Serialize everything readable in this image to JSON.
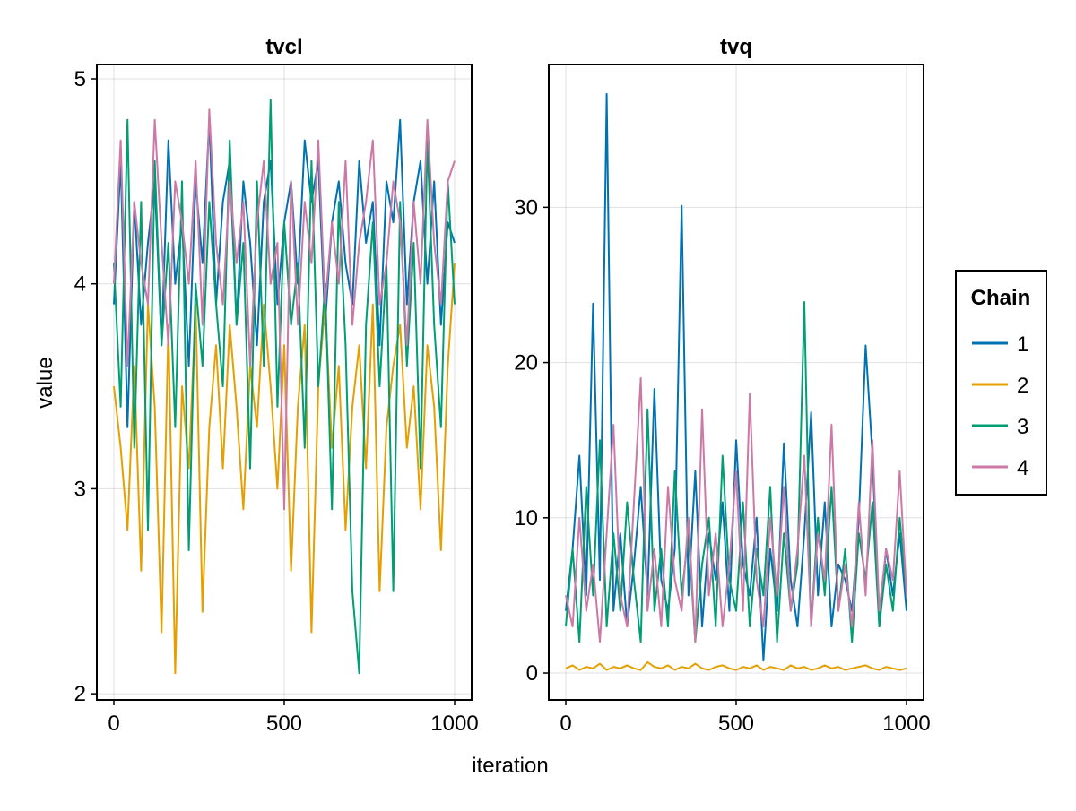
{
  "xlabel": "iteration",
  "ylabel": "value",
  "legend": {
    "title": "Chain",
    "placement": "right",
    "entries": [
      "1",
      "2",
      "3",
      "4"
    ]
  },
  "colors": {
    "1": "#0072B2",
    "2": "#E69F00",
    "3": "#009E73",
    "4": "#CC79A7"
  },
  "chart_data": [
    {
      "type": "line",
      "title": "tvcl",
      "xlim": [
        -50,
        1050
      ],
      "ylim": [
        1.97,
        5.07
      ],
      "xticks": [
        0,
        500,
        1000
      ],
      "yticks": [
        2,
        3,
        4,
        5
      ],
      "grid": true,
      "x_step": 20,
      "series": [
        {
          "name": "1",
          "values": [
            3.9,
            4.6,
            3.3,
            4.4,
            3.8,
            4.2,
            4.5,
            3.7,
            4.7,
            4.0,
            4.3,
            3.6,
            4.5,
            4.1,
            4.8,
            3.9,
            4.4,
            4.6,
            3.8,
            4.5,
            4.2,
            3.7,
            4.4,
            4.6,
            3.9,
            4.3,
            4.5,
            4.0,
            4.7,
            4.4,
            4.6,
            3.8,
            4.3,
            4.5,
            4.1,
            3.9,
            4.6,
            4.2,
            4.4,
            3.7,
            4.5,
            4.3,
            4.8,
            3.9,
            4.4,
            4.6,
            4.0,
            4.5,
            3.8,
            4.3,
            4.2
          ]
        },
        {
          "name": "2",
          "values": [
            3.5,
            3.2,
            2.8,
            3.6,
            2.6,
            3.9,
            3.4,
            2.3,
            3.8,
            2.1,
            3.5,
            3.1,
            3.9,
            2.4,
            3.3,
            3.7,
            3.1,
            3.8,
            3.4,
            2.9,
            3.6,
            3.3,
            3.9,
            3.5,
            3.0,
            3.7,
            2.6,
            3.4,
            3.8,
            2.3,
            3.5,
            3.9,
            3.2,
            3.6,
            2.8,
            3.4,
            3.7,
            3.1,
            3.9,
            2.5,
            3.3,
            3.6,
            3.8,
            3.2,
            3.5,
            2.9,
            3.7,
            3.4,
            2.7,
            3.6,
            4.1
          ]
        },
        {
          "name": "3",
          "values": [
            4.1,
            3.4,
            4.8,
            3.2,
            4.4,
            2.8,
            4.6,
            3.7,
            4.2,
            3.3,
            4.5,
            2.7,
            4.0,
            3.6,
            4.4,
            3.9,
            3.5,
            4.7,
            3.8,
            4.2,
            3.1,
            4.5,
            3.6,
            4.9,
            3.4,
            4.3,
            3.8,
            4.1,
            3.2,
            4.6,
            3.5,
            4.0,
            2.9,
            4.4,
            3.7,
            2.5,
            2.1,
            3.8,
            4.3,
            3.5,
            4.1,
            2.5,
            4.4,
            3.6,
            4.2,
            3.1,
            4.7,
            3.8,
            3.3,
            4.5,
            3.9
          ]
        },
        {
          "name": "4",
          "values": [
            4.0,
            4.7,
            3.6,
            4.4,
            4.1,
            3.9,
            4.8,
            4.2,
            3.7,
            4.5,
            4.3,
            4.0,
            4.6,
            3.8,
            4.85,
            4.2,
            3.9,
            4.5,
            4.1,
            4.4,
            3.6,
            4.3,
            4.6,
            4.0,
            4.2,
            2.9,
            4.5,
            3.8,
            4.4,
            4.1,
            4.7,
            3.9,
            4.3,
            4.0,
            4.6,
            3.8,
            4.2,
            4.4,
            4.7,
            3.9,
            4.1,
            4.5,
            4.3,
            3.7,
            4.4,
            4.0,
            4.8,
            4.2,
            3.9,
            4.5,
            4.6
          ]
        }
      ]
    },
    {
      "type": "line",
      "title": "tvq",
      "xlim": [
        -50,
        1050
      ],
      "ylim": [
        -1.73,
        39.2
      ],
      "xticks": [
        0,
        500,
        1000
      ],
      "yticks": [
        0,
        10,
        20,
        30
      ],
      "grid": true,
      "x_step": 20,
      "series": [
        {
          "name": "1",
          "values": [
            4,
            8,
            14,
            5,
            23.8,
            6,
            37.3,
            4,
            9,
            3,
            7,
            12,
            5,
            18.3,
            6,
            4,
            8,
            30.1,
            5,
            13,
            3,
            9,
            6,
            11,
            4,
            15,
            7,
            5,
            10,
            0.8,
            8,
            4,
            14.8,
            6,
            3,
            9,
            16.8,
            5,
            11,
            3,
            7,
            6,
            4,
            10,
            21.1,
            14,
            3,
            8,
            5,
            9,
            4
          ]
        },
        {
          "name": "2",
          "values": [
            0.3,
            0.5,
            0.2,
            0.4,
            0.3,
            0.6,
            0.2,
            0.4,
            0.3,
            0.5,
            0.3,
            0.2,
            0.7,
            0.4,
            0.3,
            0.5,
            0.2,
            0.4,
            0.3,
            0.6,
            0.3,
            0.2,
            0.4,
            0.5,
            0.3,
            0.2,
            0.4,
            0.3,
            0.5,
            0.2,
            0.4,
            0.3,
            0.2,
            0.5,
            0.3,
            0.4,
            0.2,
            0.3,
            0.5,
            0.3,
            0.4,
            0.2,
            0.3,
            0.4,
            0.5,
            0.3,
            0.2,
            0.4,
            0.3,
            0.2,
            0.3
          ]
        },
        {
          "name": "3",
          "values": [
            3,
            8,
            2,
            12,
            5,
            15,
            3,
            9,
            4,
            11,
            6,
            2,
            17,
            4,
            8,
            3,
            13,
            5,
            9,
            2,
            7,
            10,
            3,
            14,
            6,
            4,
            11,
            3,
            8,
            5,
            12,
            2,
            9,
            4,
            7,
            23.9,
            3,
            10,
            5,
            12,
            4,
            8,
            2,
            9,
            6,
            11,
            3,
            7,
            4,
            10,
            5
          ]
        },
        {
          "name": "4",
          "values": [
            5,
            3,
            10,
            4,
            7,
            2,
            9,
            16,
            5,
            3,
            11,
            19,
            4,
            8,
            3,
            12,
            6,
            4,
            10,
            2,
            17,
            5,
            9,
            3,
            7,
            13,
            4,
            18,
            6,
            3,
            10,
            5,
            12,
            4,
            8,
            14,
            3,
            9,
            6,
            16,
            4,
            7,
            3,
            11,
            5,
            15,
            4,
            8,
            6,
            13,
            5
          ]
        }
      ]
    }
  ]
}
